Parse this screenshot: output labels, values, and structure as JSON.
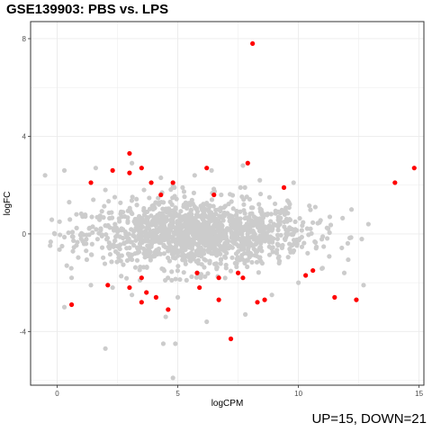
{
  "chart_data": {
    "type": "scatter",
    "title": "GSE139903: PBS vs. LPS",
    "xlabel": "logCPM",
    "ylabel": "logFC",
    "xlim": [
      -1.1,
      15.2
    ],
    "ylim": [
      -6.2,
      8.7
    ],
    "x_ticks": [
      0,
      5,
      10,
      15
    ],
    "y_ticks": [
      -4,
      0,
      4,
      8
    ],
    "grid": true,
    "background_color": "#cccccc",
    "highlight_color": "#ff0000",
    "background_points": [
      [
        -0.5,
        2.4
      ],
      [
        0.3,
        2.6
      ],
      [
        1.6,
        2.7
      ],
      [
        3.1,
        2.9
      ],
      [
        4.3,
        2.3
      ],
      [
        4.8,
        2.0
      ],
      [
        5.7,
        2.4
      ],
      [
        6.4,
        2.6
      ],
      [
        7.7,
        2.8
      ],
      [
        8.4,
        2.2
      ],
      [
        9.8,
        2.1
      ],
      [
        0.5,
        1.3
      ],
      [
        1.5,
        1.4
      ],
      [
        2.0,
        1.8
      ],
      [
        3.6,
        1.8
      ],
      [
        5.2,
        1.9
      ],
      [
        6.8,
        1.6
      ],
      [
        7.6,
        1.9
      ],
      [
        8.8,
        1.5
      ],
      [
        10.7,
        1.1
      ],
      [
        11.3,
        0.7
      ],
      [
        12.2,
        1.0
      ],
      [
        12.9,
        0.4
      ],
      [
        0.1,
        0.5
      ],
      [
        0.8,
        0.8
      ],
      [
        1.2,
        -0.4
      ],
      [
        0.4,
        -1.3
      ],
      [
        0.6,
        -1.8
      ],
      [
        1.4,
        -2.1
      ],
      [
        2.3,
        -2.2
      ],
      [
        3.1,
        -2.5
      ],
      [
        4.5,
        -3.4
      ],
      [
        5.0,
        -2.6
      ],
      [
        6.2,
        -3.6
      ],
      [
        7.8,
        -3.3
      ],
      [
        8.9,
        -2.5
      ],
      [
        10.0,
        -2.0
      ],
      [
        11.0,
        -1.4
      ],
      [
        11.9,
        -1.6
      ],
      [
        12.7,
        -2.1
      ],
      [
        4.4,
        -4.5
      ],
      [
        4.9,
        -4.5
      ],
      [
        2.0,
        -4.7
      ],
      [
        4.8,
        -5.9
      ],
      [
        9.2,
        -1.2
      ],
      [
        9.6,
        1.3
      ],
      [
        -0.1,
        0.0
      ],
      [
        0.3,
        -3.0
      ]
    ],
    "density_cloud": {
      "x_center": 5.8,
      "x_spread": 2.3,
      "y_center": 0.0,
      "y_spread": 0.75,
      "count": 1400
    },
    "highlighted_points": [
      [
        8.1,
        7.8
      ],
      [
        3.0,
        3.3
      ],
      [
        14.8,
        2.7
      ],
      [
        6.2,
        2.7
      ],
      [
        7.9,
        2.9
      ],
      [
        3.5,
        2.7
      ],
      [
        2.3,
        2.6
      ],
      [
        3.0,
        2.5
      ],
      [
        1.4,
        2.1
      ],
      [
        3.9,
        2.1
      ],
      [
        4.8,
        2.1
      ],
      [
        9.4,
        1.9
      ],
      [
        14.0,
        2.1
      ],
      [
        4.3,
        1.6
      ],
      [
        6.5,
        1.6
      ],
      [
        5.8,
        -1.6
      ],
      [
        7.5,
        -1.6
      ],
      [
        3.5,
        -1.8
      ],
      [
        6.7,
        -1.8
      ],
      [
        7.7,
        -1.8
      ],
      [
        10.3,
        -1.7
      ],
      [
        10.6,
        -1.5
      ],
      [
        2.1,
        -2.1
      ],
      [
        3.0,
        -2.2
      ],
      [
        3.7,
        -2.4
      ],
      [
        5.9,
        -2.2
      ],
      [
        4.1,
        -2.6
      ],
      [
        3.5,
        -2.8
      ],
      [
        6.7,
        -2.7
      ],
      [
        8.3,
        -2.8
      ],
      [
        8.6,
        -2.7
      ],
      [
        11.5,
        -2.6
      ],
      [
        12.4,
        -2.7
      ],
      [
        0.6,
        -2.9
      ],
      [
        4.6,
        -3.1
      ],
      [
        7.2,
        -4.3
      ]
    ],
    "annotation": "UP=15, DOWN=21"
  }
}
